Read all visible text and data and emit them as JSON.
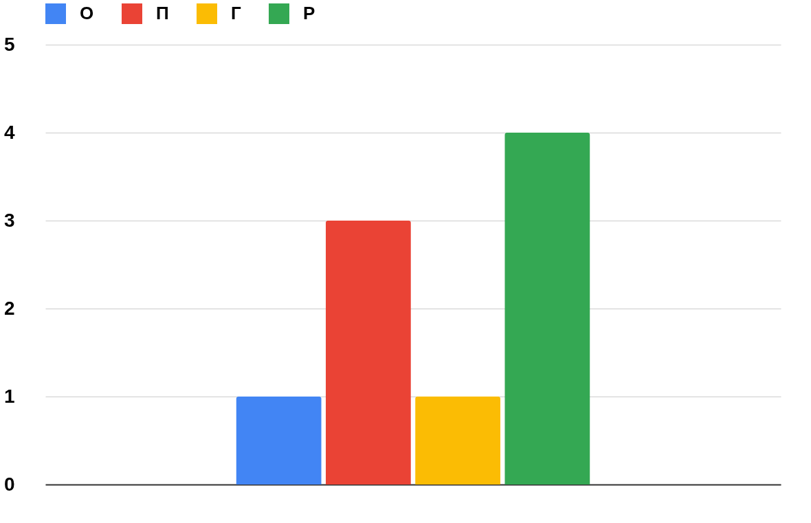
{
  "chart_data": {
    "type": "bar",
    "categories": [
      null
    ],
    "series": [
      {
        "name": "О",
        "color": "#4285f4",
        "values": [
          1
        ]
      },
      {
        "name": "П",
        "color": "#ea4335",
        "values": [
          3
        ]
      },
      {
        "name": "Г",
        "color": "#fbbc04",
        "values": [
          1
        ]
      },
      {
        "name": "Р",
        "color": "#34a853",
        "values": [
          4
        ]
      }
    ],
    "ylim": [
      0,
      5
    ],
    "yticks": [
      0,
      1,
      2,
      3,
      4,
      5
    ],
    "grid": "y",
    "legend": "top"
  }
}
